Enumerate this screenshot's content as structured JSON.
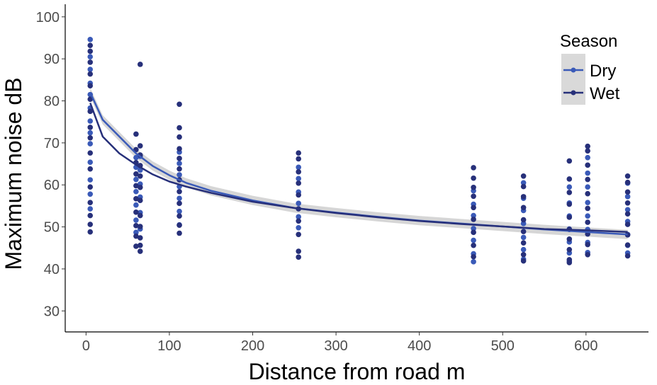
{
  "chart_data": {
    "type": "scatter",
    "title": "",
    "xlabel": "Distance from road m",
    "ylabel": "Maximum noise dB",
    "xlim": [
      -25,
      675
    ],
    "ylim": [
      25,
      103
    ],
    "x_ticks": [
      0,
      100,
      200,
      300,
      400,
      500,
      600
    ],
    "y_ticks": [
      30,
      40,
      50,
      60,
      70,
      80,
      90,
      100
    ],
    "grid": false,
    "legend": {
      "title": "Season",
      "position": "top-right"
    },
    "series": [
      {
        "name": "Dry",
        "color": "#3a5ab8",
        "fit_curve": [
          [
            5,
            82
          ],
          [
            20,
            75.5
          ],
          [
            40,
            71.5
          ],
          [
            60,
            67.5
          ],
          [
            80,
            64.5
          ],
          [
            100,
            62.3
          ],
          [
            120,
            60.5
          ],
          [
            150,
            58.6
          ],
          [
            200,
            56.3
          ],
          [
            250,
            54.5
          ],
          [
            300,
            53.4
          ],
          [
            350,
            52.4
          ],
          [
            400,
            51.5
          ],
          [
            450,
            50.8
          ],
          [
            500,
            50.1
          ],
          [
            550,
            49.4
          ],
          [
            600,
            48.8
          ],
          [
            650,
            48.2
          ]
        ],
        "fit_band_halfwidth": 1.1,
        "points": [
          [
            5,
            94.6
          ],
          [
            5,
            90.5
          ],
          [
            5,
            87.5
          ],
          [
            5,
            84.2
          ],
          [
            5,
            81.5
          ],
          [
            5,
            78.3
          ],
          [
            5,
            75.2
          ],
          [
            5,
            72.4
          ],
          [
            5,
            69.8
          ],
          [
            5,
            65.4
          ],
          [
            5,
            61.2
          ],
          [
            5,
            57.8
          ],
          [
            5,
            54.3
          ],
          [
            60,
            66.5
          ],
          [
            60,
            64.2
          ],
          [
            60,
            61.3
          ],
          [
            60,
            58.4
          ],
          [
            60,
            55.2
          ],
          [
            60,
            51.6
          ],
          [
            60,
            48.7
          ],
          [
            65,
            66.8
          ],
          [
            65,
            63.5
          ],
          [
            65,
            60.2
          ],
          [
            65,
            57.1
          ],
          [
            65,
            53.4
          ],
          [
            65,
            49.5
          ],
          [
            112,
            67.8
          ],
          [
            112,
            65.1
          ],
          [
            112,
            62.4
          ],
          [
            112,
            59.6
          ],
          [
            112,
            56.8
          ],
          [
            112,
            53.7
          ],
          [
            112,
            50.5
          ],
          [
            255,
            64.2
          ],
          [
            255,
            61.5
          ],
          [
            255,
            58.3
          ],
          [
            255,
            55.6
          ],
          [
            255,
            52.4
          ],
          [
            255,
            49.8
          ],
          [
            465,
            58.6
          ],
          [
            465,
            55.4
          ],
          [
            465,
            52.7
          ],
          [
            465,
            49.6
          ],
          [
            465,
            46.8
          ],
          [
            465,
            43.6
          ],
          [
            465,
            41.7
          ],
          [
            525,
            60.5
          ],
          [
            525,
            56.8
          ],
          [
            525,
            53.9
          ],
          [
            525,
            50.8
          ],
          [
            525,
            47.5
          ],
          [
            525,
            44.6
          ],
          [
            525,
            42.3
          ],
          [
            580,
            59.5
          ],
          [
            580,
            55.7
          ],
          [
            580,
            52.6
          ],
          [
            580,
            49.5
          ],
          [
            580,
            46.4
          ],
          [
            580,
            43.8
          ],
          [
            580,
            41.8
          ],
          [
            602,
            66.5
          ],
          [
            602,
            62.8
          ],
          [
            602,
            59.5
          ],
          [
            602,
            55.8
          ],
          [
            602,
            52.6
          ],
          [
            602,
            49.4
          ],
          [
            602,
            46.3
          ],
          [
            602,
            43.9
          ],
          [
            650,
            60.4
          ],
          [
            650,
            57.2
          ],
          [
            650,
            54.1
          ],
          [
            650,
            51.3
          ],
          [
            650,
            48.2
          ],
          [
            650,
            45.6
          ],
          [
            650,
            43.8
          ]
        ]
      },
      {
        "name": "Wet",
        "color": "#27307a",
        "fit_curve": [
          [
            5,
            79.5
          ],
          [
            20,
            71.5
          ],
          [
            40,
            67.5
          ],
          [
            60,
            64.8
          ],
          [
            80,
            62.5
          ],
          [
            100,
            60.8
          ],
          [
            120,
            59.6
          ],
          [
            150,
            58.1
          ],
          [
            200,
            56
          ],
          [
            250,
            54.5
          ],
          [
            300,
            53.3
          ],
          [
            350,
            52.3
          ],
          [
            400,
            51.4
          ],
          [
            450,
            50.7
          ],
          [
            500,
            50.1
          ],
          [
            550,
            49.5
          ],
          [
            600,
            49.2
          ],
          [
            650,
            48.8
          ]
        ],
        "points": [
          [
            5,
            93.2
          ],
          [
            5,
            91.8
          ],
          [
            5,
            89.2
          ],
          [
            5,
            86.4
          ],
          [
            5,
            83.6
          ],
          [
            5,
            80.4
          ],
          [
            5,
            77.5
          ],
          [
            5,
            73.7
          ],
          [
            5,
            71.2
          ],
          [
            5,
            67.6
          ],
          [
            5,
            63.8
          ],
          [
            5,
            59.5
          ],
          [
            5,
            55.8
          ],
          [
            5,
            52.7
          ],
          [
            5,
            50.6
          ],
          [
            5,
            48.8
          ],
          [
            60,
            72.1
          ],
          [
            60,
            68.4
          ],
          [
            60,
            65.3
          ],
          [
            60,
            62.6
          ],
          [
            60,
            59.8
          ],
          [
            60,
            56.7
          ],
          [
            60,
            53.5
          ],
          [
            60,
            50.3
          ],
          [
            60,
            47.8
          ],
          [
            60,
            45.4
          ],
          [
            65,
            88.7
          ],
          [
            65,
            69.3
          ],
          [
            65,
            67.1
          ],
          [
            65,
            64.6
          ],
          [
            65,
            62.1
          ],
          [
            65,
            59.4
          ],
          [
            65,
            56.3
          ],
          [
            65,
            52.7
          ],
          [
            65,
            50.1
          ],
          [
            65,
            47.4
          ],
          [
            65,
            45.6
          ],
          [
            65,
            44.2
          ],
          [
            112,
            79.2
          ],
          [
            112,
            73.6
          ],
          [
            112,
            71.4
          ],
          [
            112,
            68.6
          ],
          [
            112,
            66.3
          ],
          [
            112,
            63.8
          ],
          [
            112,
            61.2
          ],
          [
            112,
            58.4
          ],
          [
            112,
            55.6
          ],
          [
            112,
            52.6
          ],
          [
            112,
            50.4
          ],
          [
            112,
            48.5
          ],
          [
            255,
            67.6
          ],
          [
            255,
            66.2
          ],
          [
            255,
            63.1
          ],
          [
            255,
            60.4
          ],
          [
            255,
            57.6
          ],
          [
            255,
            54.3
          ],
          [
            255,
            51.4
          ],
          [
            255,
            48.2
          ],
          [
            255,
            44.2
          ],
          [
            255,
            42.8
          ],
          [
            465,
            64.1
          ],
          [
            465,
            61.6
          ],
          [
            465,
            59.4
          ],
          [
            465,
            57.3
          ],
          [
            465,
            54.6
          ],
          [
            465,
            51.8
          ],
          [
            465,
            48.7
          ],
          [
            465,
            45.6
          ],
          [
            465,
            42.9
          ],
          [
            525,
            62.1
          ],
          [
            525,
            59.6
          ],
          [
            525,
            57.2
          ],
          [
            525,
            54.6
          ],
          [
            525,
            51.7
          ],
          [
            525,
            48.9
          ],
          [
            525,
            46.2
          ],
          [
            525,
            43.4
          ],
          [
            525,
            41.9
          ],
          [
            580,
            65.7
          ],
          [
            580,
            61.4
          ],
          [
            580,
            58.2
          ],
          [
            580,
            55.4
          ],
          [
            580,
            52.3
          ],
          [
            580,
            49.4
          ],
          [
            580,
            47.1
          ],
          [
            580,
            44.6
          ],
          [
            580,
            42.2
          ],
          [
            580,
            41.5
          ],
          [
            602,
            69.2
          ],
          [
            602,
            68.1
          ],
          [
            602,
            64.7
          ],
          [
            602,
            61.3
          ],
          [
            602,
            57.9
          ],
          [
            602,
            54.4
          ],
          [
            602,
            51.1
          ],
          [
            602,
            48.3
          ],
          [
            602,
            45.8
          ],
          [
            602,
            43.4
          ],
          [
            650,
            62.1
          ],
          [
            650,
            60.6
          ],
          [
            650,
            58.3
          ],
          [
            650,
            55.7
          ],
          [
            650,
            53.1
          ],
          [
            650,
            50.6
          ],
          [
            650,
            48.1
          ],
          [
            650,
            45.7
          ],
          [
            650,
            43.1
          ]
        ]
      }
    ]
  }
}
